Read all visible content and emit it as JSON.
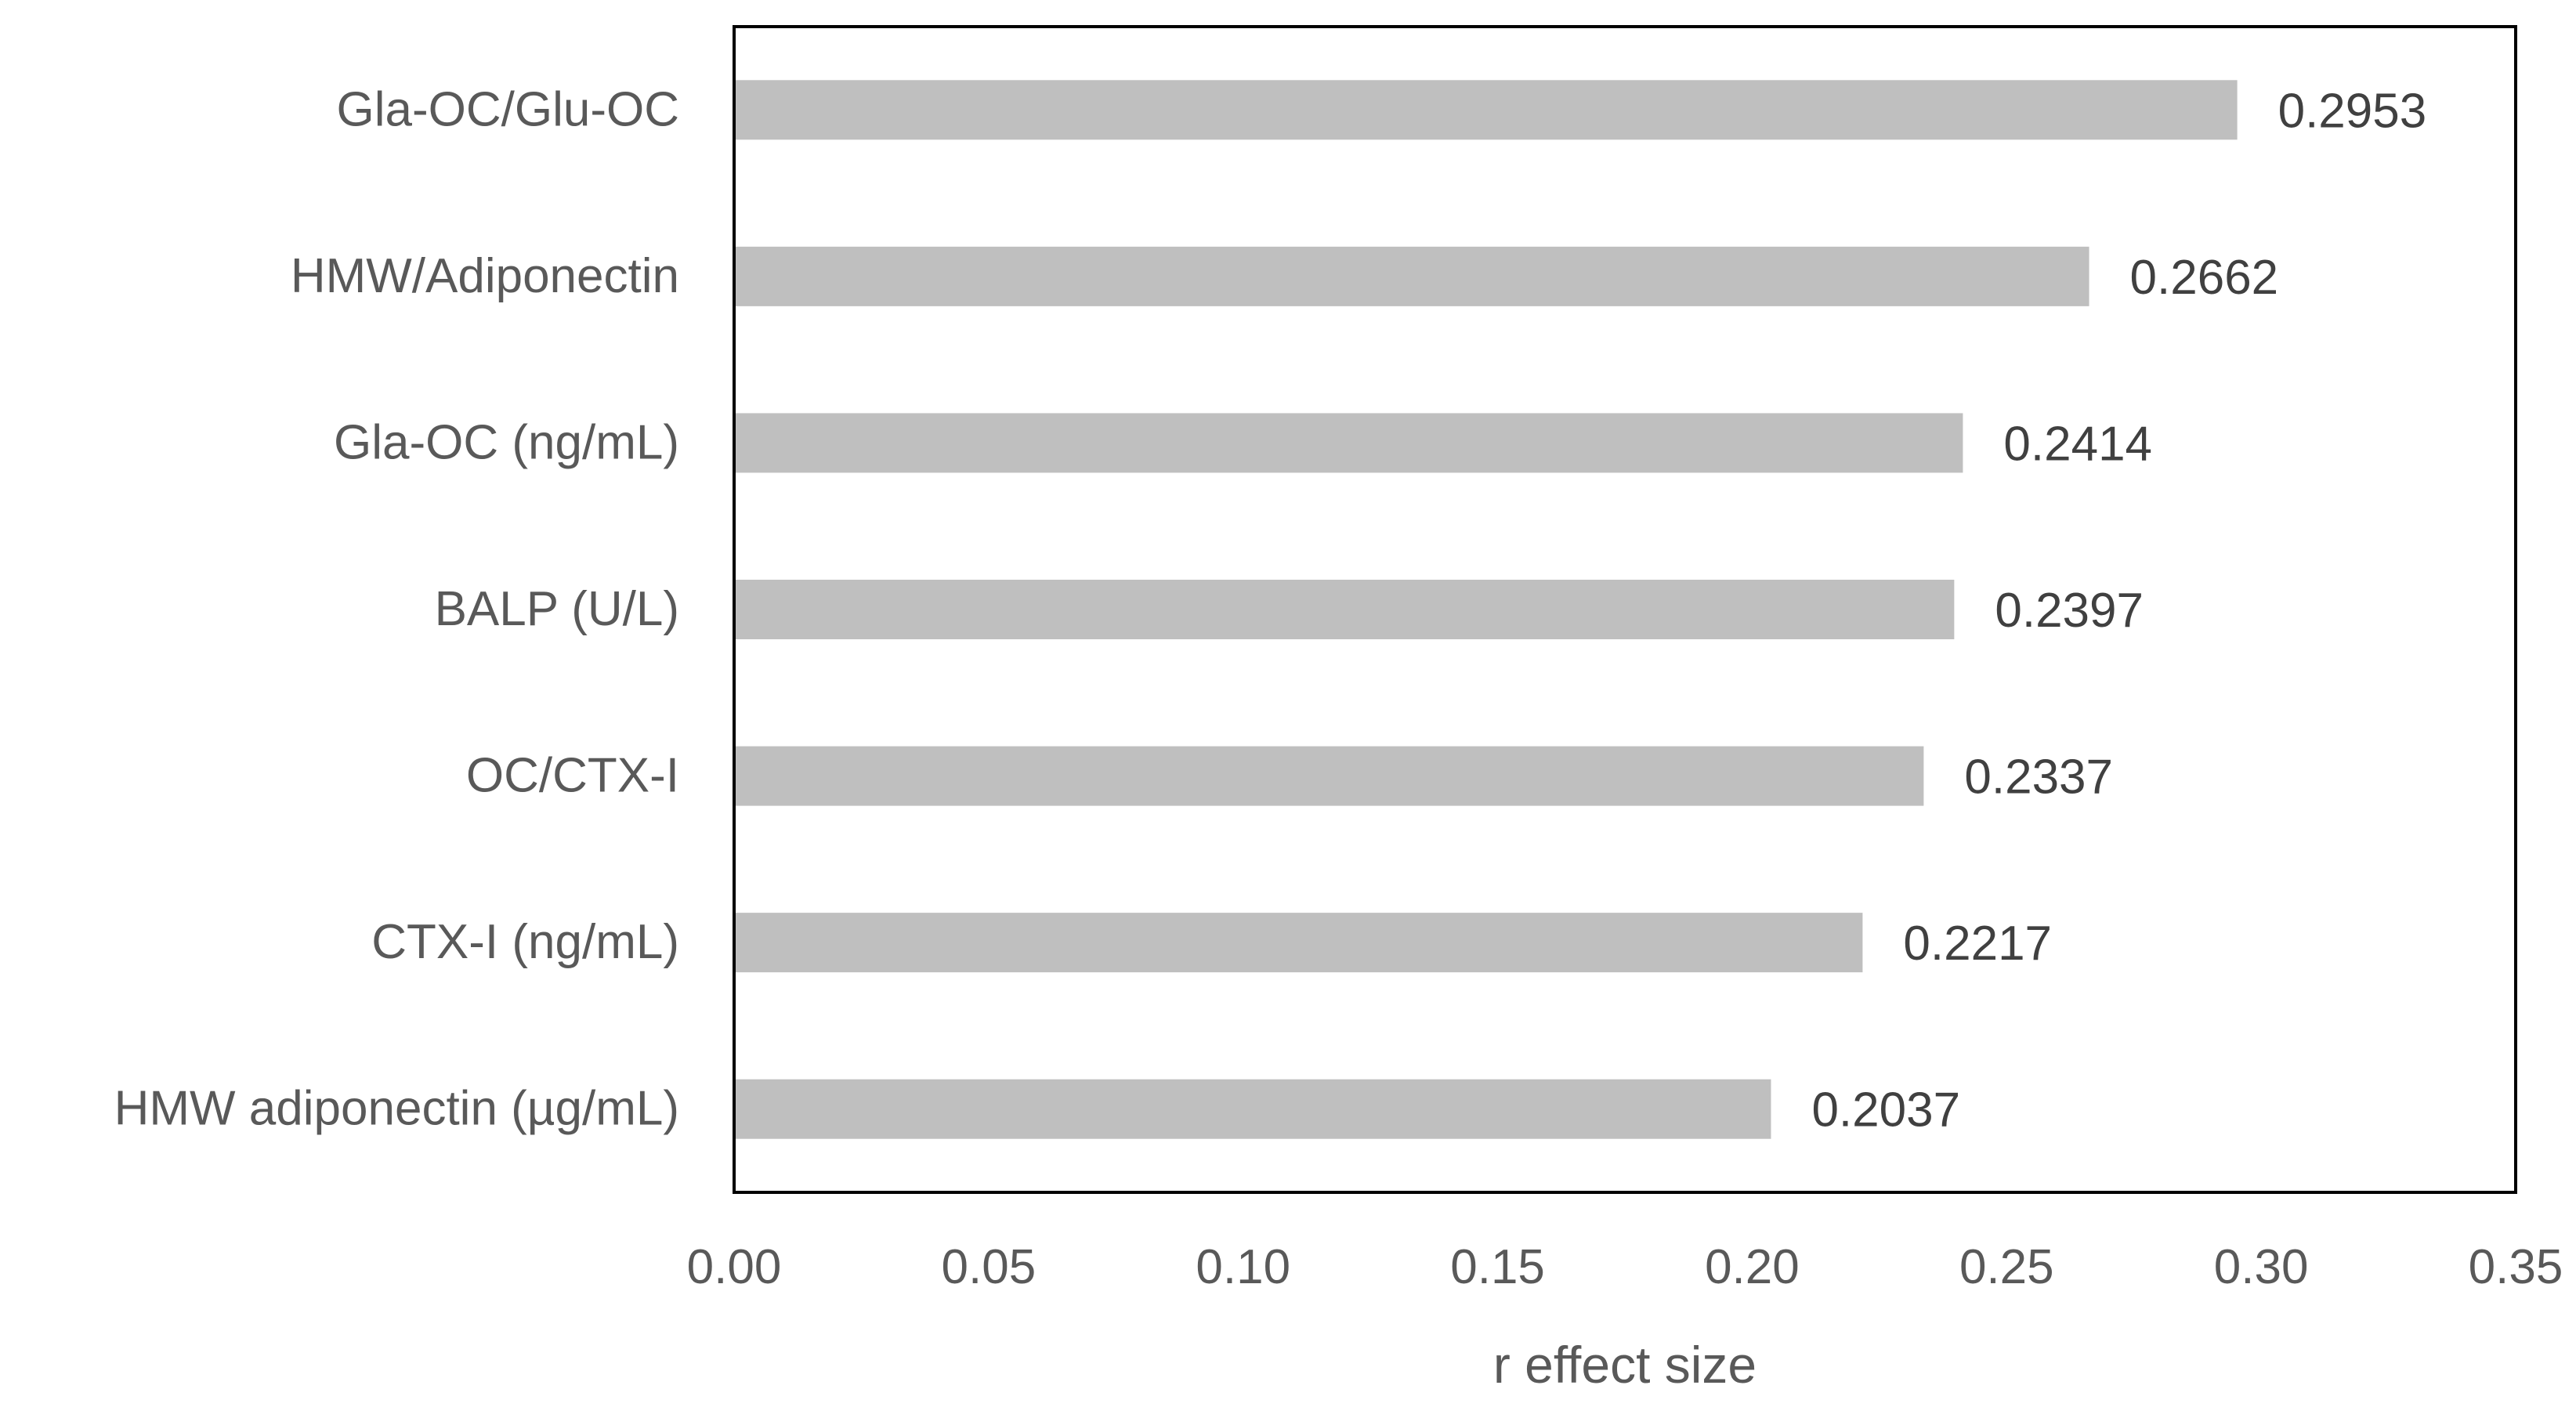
{
  "chart_data": {
    "type": "bar",
    "orientation": "horizontal",
    "categories": [
      "Gla-OC/Glu-OC",
      "HMW/Adiponectin",
      "Gla-OC (ng/mL)",
      "BALP (U/L)",
      "OC/CTX-I",
      "CTX-I (ng/mL)",
      "HMW adiponectin (µg/mL)"
    ],
    "values": [
      0.2953,
      0.2662,
      0.2414,
      0.2397,
      0.2337,
      0.2217,
      0.2037
    ],
    "value_labels": [
      "0.2953",
      "0.2662",
      "0.2414",
      "0.2397",
      "0.2337",
      "0.2217",
      "0.2037"
    ],
    "title": "",
    "xlabel": "r effect size",
    "ylabel": "",
    "xlim": [
      0,
      0.35
    ],
    "xticks": [
      0,
      0.05,
      0.1,
      0.15,
      0.2,
      0.25,
      0.3,
      0.35
    ],
    "xtick_labels": [
      "0.00",
      "0.05",
      "0.10",
      "0.15",
      "0.20",
      "0.25",
      "0.30",
      "0.35"
    ],
    "grid": false,
    "legend": "none",
    "bar_color": "#bfbfbf",
    "frame_color": "#000000"
  }
}
